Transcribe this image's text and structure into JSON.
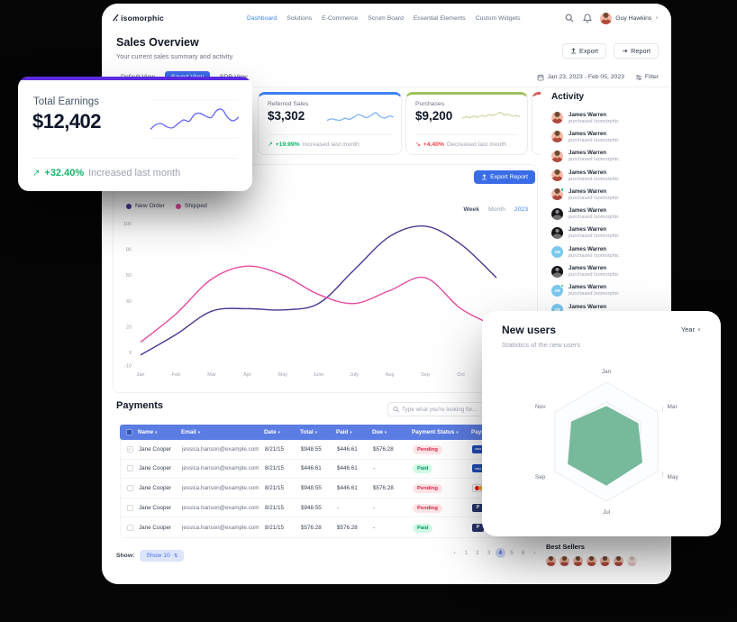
{
  "nav": {
    "logo_glyph": "∕∕.",
    "logo_text": "isomorphic",
    "items": [
      {
        "label": "Dashboard",
        "active": true
      },
      {
        "label": "Solutions",
        "active": false
      },
      {
        "label": "E-Commerce",
        "active": false
      },
      {
        "label": "Scrum Board",
        "active": false
      },
      {
        "label": "Essential Elements",
        "active": false
      },
      {
        "label": "Custom Widgets",
        "active": false
      }
    ],
    "user_name": "Guy Hawkins",
    "user_menu_chevron": "∨"
  },
  "page_header": {
    "title": "Sales Overview",
    "subtitle": "Your current sales summary and activity.",
    "export_label": "Export",
    "report_label": "Report"
  },
  "toolbar": {
    "tabs": [
      {
        "label": "Default View",
        "active": false
      },
      {
        "label": "Saved View",
        "active": true
      },
      {
        "label": "SDR View",
        "active": false
      }
    ],
    "date_range": "Jan 23, 2023 - Feb 05, 2023",
    "filter_label": "Filter"
  },
  "stat_cards": {
    "earnings": {
      "title": "Total Earnings",
      "value": "$12,402",
      "trend_arrow": "↗",
      "trend_pct": "+32.40%",
      "trend_note": "Increased last month",
      "accent": "#5b2be0",
      "spark_color": "#6366f1",
      "spark": [
        30,
        40,
        42,
        35,
        33,
        42,
        50,
        47,
        62,
        64,
        58,
        55,
        70,
        72,
        55,
        48,
        56
      ]
    },
    "referred": {
      "title": "Referred Sales",
      "value": "$3,302",
      "trend_arrow": "↗",
      "trend_pct": "+19.99%",
      "trend_note": "Increased last month",
      "accent": "#3b82f6",
      "spark_color": "#7eb3f7",
      "spark": [
        35,
        42,
        38,
        36,
        45,
        40,
        50,
        62,
        55,
        48,
        60,
        70,
        52,
        46,
        55,
        50
      ]
    },
    "purchases": {
      "title": "Purchases",
      "value": "$9,200",
      "trend_arrow": "↘",
      "trend_pct": "+4.40%",
      "trend_note": "Decreased last month",
      "accent": "#9fc05a",
      "spark_color": "#ccdaa5",
      "spark": [
        45,
        52,
        48,
        55,
        50,
        58,
        54,
        62,
        58,
        66,
        72,
        60,
        64,
        55,
        58,
        52
      ]
    },
    "third_accent": "#e05b5b"
  },
  "chart_section": {
    "export_report_label": "Export Report",
    "toggles": [
      {
        "label": "Week",
        "active": false
      },
      {
        "label": "Month",
        "active": false
      },
      {
        "label": "2023",
        "active": true
      }
    ]
  },
  "chart_data": [
    {
      "type": "line",
      "title": "Sales Overview line chart",
      "x": [
        "Jan",
        "Feb",
        "Mar",
        "Apr",
        "May",
        "June",
        "July",
        "Aug",
        "Sep",
        "Oct"
      ],
      "ylim": [
        -10,
        100
      ],
      "yticks": [
        100,
        80,
        60,
        40,
        20,
        0,
        -10
      ],
      "grid": false,
      "legend_position": "top-left",
      "series": [
        {
          "name": "New Order",
          "color": "#4a3993",
          "values": [
            -2,
            14,
            32,
            34,
            33,
            38,
            64,
            90,
            98,
            84
          ],
          "ext": 58
        },
        {
          "name": "Shipped",
          "color": "#e54ba0",
          "values": [
            8,
            30,
            57,
            67,
            60,
            45,
            38,
            48,
            58,
            34
          ],
          "ext": 20
        }
      ]
    },
    {
      "type": "radar",
      "title": "New users",
      "categories": [
        "Jan",
        "Mar",
        "May",
        "Jul",
        "Sep",
        "Nov"
      ],
      "values": [
        60,
        62,
        70,
        74,
        75,
        68
      ],
      "max": 100,
      "color": "#70b596"
    }
  ],
  "activity": {
    "title": "Activity",
    "items": [
      {
        "name": "James Warren",
        "action": "purchased Isomorphic",
        "avatar": "photo",
        "initials": "",
        "online": false
      },
      {
        "name": "James Warren",
        "action": "purchased Isomorphic",
        "avatar": "photo",
        "initials": "",
        "online": false
      },
      {
        "name": "James Warren",
        "action": "purchased Isomorphic",
        "avatar": "photo",
        "initials": "",
        "online": false
      },
      {
        "name": "James Warren",
        "action": "purchased Isomorphic",
        "avatar": "photo",
        "initials": "",
        "online": false
      },
      {
        "name": "James Warren",
        "action": "purchased Isomorphic",
        "avatar": "photo",
        "initials": "",
        "online": true
      },
      {
        "name": "James Warren",
        "action": "purchased Isomorphic",
        "avatar": "dark",
        "initials": "",
        "online": false
      },
      {
        "name": "James Warren",
        "action": "purchased Isomorphic",
        "avatar": "dark",
        "initials": "",
        "online": false
      },
      {
        "name": "James Warren",
        "action": "purchased Isomorphic",
        "avatar": "init",
        "initials": "AB",
        "online": false
      },
      {
        "name": "James Warren",
        "action": "purchased Isomorphic",
        "avatar": "dark",
        "initials": "",
        "online": false
      },
      {
        "name": "James Warren",
        "action": "purchased Isomorphic",
        "avatar": "init",
        "initials": "AB",
        "online": true
      },
      {
        "name": "James Warren",
        "action": "purchased Isomorphic",
        "avatar": "init",
        "initials": "AB",
        "online": false
      }
    ]
  },
  "payments": {
    "title": "Payments",
    "search_placeholder": "Type what you're looking for...",
    "columns": [
      "Name",
      "Email",
      "Date",
      "Total",
      "Paid",
      "Due",
      "Payment Status",
      "Payment Method"
    ],
    "column_sort_glyph": "▾",
    "check_glyph": "✓",
    "method_icons": {
      "visa": "VISA",
      "mastercard": "",
      "paypal": "P"
    },
    "rows": [
      {
        "checked": true,
        "name": "Jane Cooper",
        "email": "jessica.hanson@example.com",
        "date": "8/21/15",
        "total": "$948.55",
        "paid": "$446.61",
        "due": "$576.28",
        "status": "Pending",
        "status_type": "pending",
        "method": "Visa",
        "method_type": "visa"
      },
      {
        "checked": false,
        "name": "Jane Cooper",
        "email": "jessica.hanson@example.com",
        "date": "8/21/15",
        "total": "$446.61",
        "paid": "$446.61",
        "due": "-",
        "status": "Paid",
        "status_type": "paid",
        "method": "Visa",
        "method_type": "visa"
      },
      {
        "checked": false,
        "name": "Jane Cooper",
        "email": "jessica.hanson@example.com",
        "date": "8/21/15",
        "total": "$948.55",
        "paid": "$446.61",
        "due": "$576.28",
        "status": "Pending",
        "status_type": "pending",
        "method": "Mastercard",
        "method_type": "mastercard"
      },
      {
        "checked": false,
        "name": "Jane Cooper",
        "email": "jessica.hanson@example.com",
        "date": "8/21/15",
        "total": "$948.55",
        "paid": "-",
        "due": "-",
        "status": "Pending",
        "status_type": "pending",
        "method": "Paypal",
        "method_type": "paypal"
      },
      {
        "checked": false,
        "name": "Jane Cooper",
        "email": "jessica.hanson@example.com",
        "date": "8/21/15",
        "total": "$576.28",
        "paid": "$576.28",
        "due": "-",
        "status": "Paid",
        "status_type": "paid",
        "method": "Paypal",
        "method_type": "paypal"
      }
    ]
  },
  "table_footer": {
    "show_label": "Show:",
    "show_value": "Show 10",
    "sort_glyph": "⇅",
    "prev": "‹",
    "next": "›",
    "pages": [
      "1",
      "2",
      "3",
      "4",
      "5",
      "6"
    ],
    "active_page": "4"
  },
  "new_users": {
    "title": "New users",
    "subtitle": "Statistics of the new users",
    "range_label": "Year",
    "chevron": "∨"
  },
  "best_sellers": {
    "title": "Best Sellers",
    "avatar_count": 7
  },
  "colors": {
    "primary": "#3b6ce7",
    "table_header": "#5b7ce2",
    "trend_up": "#12b76a",
    "trend_down": "#ef4444",
    "pending_bg": "#ffe4e6",
    "pending_text": "#e11d48",
    "paid_bg": "#d1fae5",
    "paid_text": "#059669",
    "radar_fill": "#70b596"
  }
}
